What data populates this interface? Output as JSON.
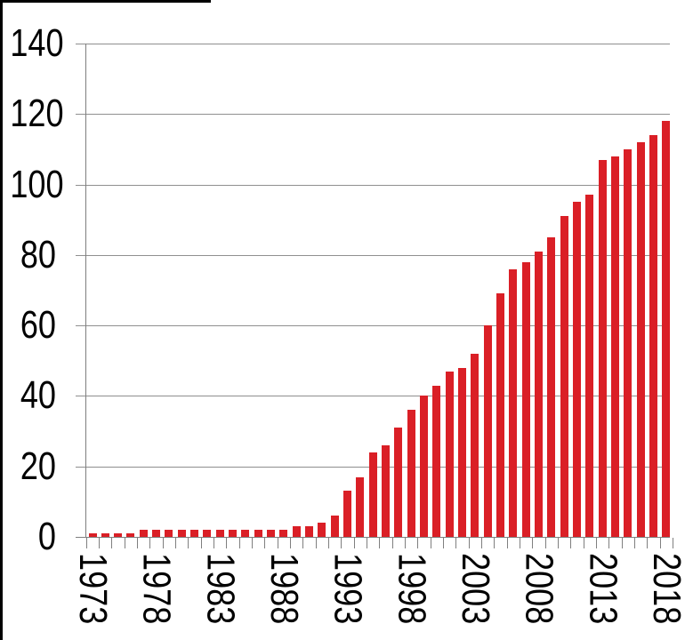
{
  "chart_data": {
    "type": "bar",
    "title": "",
    "xlabel": "",
    "ylabel": "",
    "x": [
      1973,
      1974,
      1975,
      1976,
      1977,
      1978,
      1979,
      1980,
      1981,
      1982,
      1983,
      1984,
      1985,
      1986,
      1987,
      1988,
      1989,
      1990,
      1991,
      1992,
      1993,
      1994,
      1995,
      1996,
      1997,
      1998,
      1999,
      2000,
      2001,
      2002,
      2003,
      2004,
      2005,
      2006,
      2007,
      2008,
      2009,
      2010,
      2011,
      2012,
      2013,
      2014,
      2015,
      2016,
      2017,
      2018
    ],
    "values": [
      1,
      1,
      1,
      1,
      2,
      2,
      2,
      2,
      2,
      2,
      2,
      2,
      2,
      2,
      2,
      2,
      3,
      3,
      4,
      6,
      13,
      17,
      24,
      26,
      31,
      36,
      40,
      43,
      47,
      48,
      52,
      60,
      69,
      76,
      78,
      81,
      85,
      91,
      95,
      97,
      107,
      108,
      110,
      112,
      114,
      118
    ],
    "ylim": [
      0,
      140
    ],
    "yticks": [
      0,
      20,
      40,
      60,
      80,
      100,
      120,
      140
    ],
    "xtick_years": [
      1973,
      1978,
      1983,
      1988,
      1993,
      1998,
      2003,
      2008,
      2013,
      2018
    ],
    "bar_color": "#da1f26",
    "gridline_color": "#8f8f8f",
    "axis_color": "#7f7f7f",
    "grid": "horizontal",
    "legend": "none",
    "x_label_rotation": "vertical-top-to-bottom"
  },
  "frame": {
    "border_color": "#000000"
  }
}
